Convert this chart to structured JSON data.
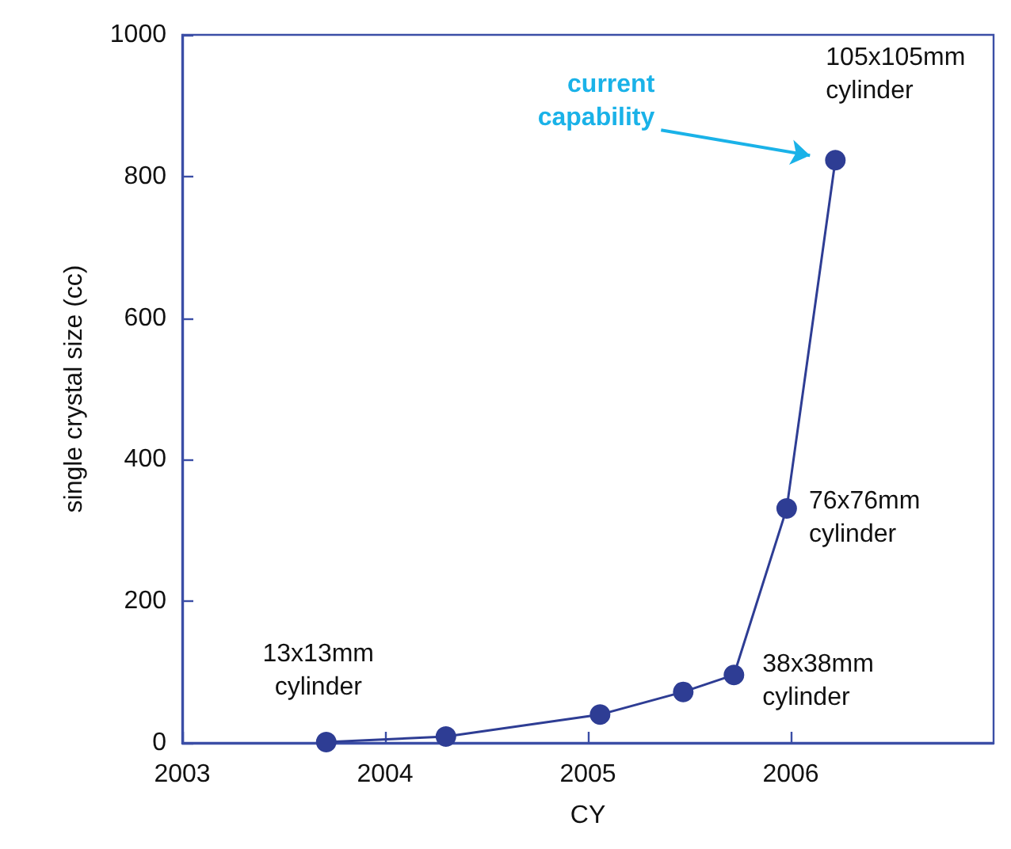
{
  "chart_data": {
    "type": "line",
    "xlabel": "CY",
    "ylabel": "single crystal size (cc)",
    "x": [
      2003.71,
      2004.3,
      2005.06,
      2005.47,
      2005.72,
      2005.98,
      2006.22
    ],
    "values": [
      1,
      9,
      40,
      72,
      96,
      331,
      823
    ],
    "color": "#2e3d94",
    "marker": "circle",
    "line_style": "solid",
    "grid": false,
    "xlim": [
      2003,
      2007
    ],
    "xticks": [
      2003,
      2004,
      2005,
      2006
    ],
    "ylim": [
      0,
      1000
    ],
    "yticks": [
      0,
      200,
      400,
      600,
      800,
      1000
    ],
    "annotations": [
      {
        "text": "13x13mm\ncylinder",
        "x": 2003.71,
        "y": 1
      },
      {
        "text": "38x38mm\ncylinder",
        "x": 2005.72,
        "y": 96
      },
      {
        "text": "76x76mm\ncylinder",
        "x": 2005.98,
        "y": 331
      },
      {
        "text": "105x105mm\ncylinder",
        "x": 2006.22,
        "y": 823
      },
      "current\ncapability"
    ]
  }
}
